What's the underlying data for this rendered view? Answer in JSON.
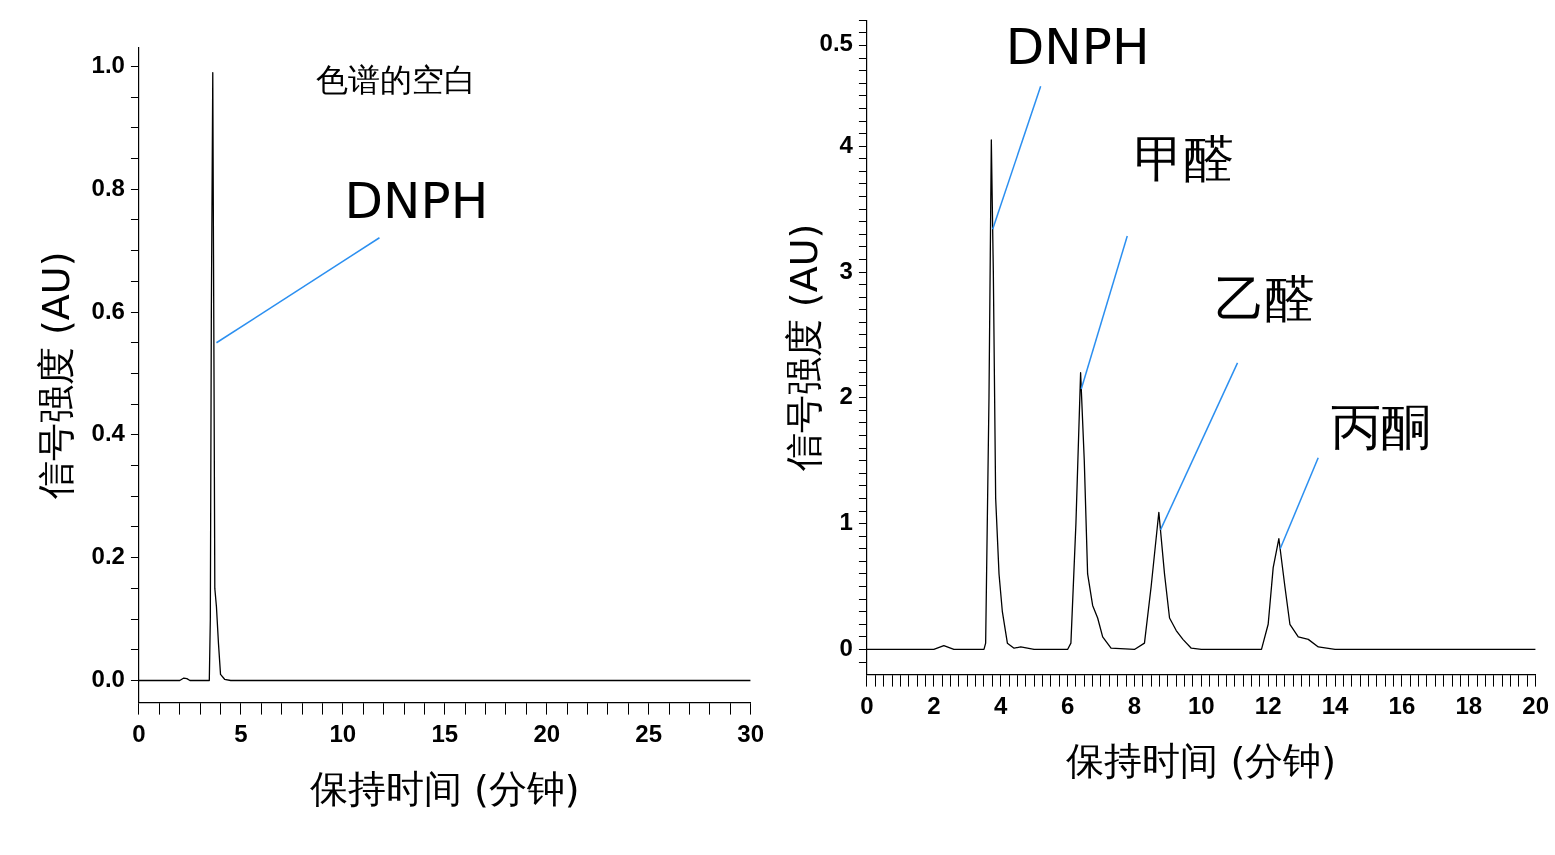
{
  "chart_data": [
    {
      "type": "line",
      "title": "色谱的空白",
      "xlabel": "保持时间 (分钟)",
      "ylabel": "信号强度 (AU)",
      "color": "#000000",
      "marker": "none",
      "line_style": "solid",
      "grid": false,
      "legend": false,
      "x": [
        0,
        1,
        2,
        2.2,
        2.35,
        2.5,
        3.0,
        3.45,
        3.5,
        3.55,
        3.62,
        3.68,
        3.72,
        3.8,
        3.9,
        4.0,
        4.2,
        4.5,
        10,
        20,
        30
      ],
      "values": [
        0,
        0,
        0,
        0.004,
        0.003,
        0,
        0,
        0,
        0.1,
        0.6,
        0.99,
        0.5,
        0.15,
        0.12,
        0.06,
        0.01,
        0.002,
        0,
        0,
        0,
        0
      ],
      "xlim": [
        0,
        30
      ],
      "ylim": [
        -0.036,
        1.03
      ],
      "xticks": [
        0,
        {
          "value": 1,
          "label": null
        },
        {
          "value": 2,
          "label": null
        },
        {
          "value": 3,
          "label": null
        },
        {
          "value": 4,
          "label": null
        },
        5,
        {
          "value": 6,
          "label": null
        },
        {
          "value": 7,
          "label": null
        },
        {
          "value": 8,
          "label": null
        },
        {
          "value": 9,
          "label": null
        },
        10,
        {
          "value": 11,
          "label": null
        },
        {
          "value": 12,
          "label": null
        },
        {
          "value": 13,
          "label": null
        },
        {
          "value": 14,
          "label": null
        },
        15,
        {
          "value": 16,
          "label": null
        },
        {
          "value": 17,
          "label": null
        },
        {
          "value": 18,
          "label": null
        },
        {
          "value": 19,
          "label": null
        },
        20,
        {
          "value": 21,
          "label": null
        },
        {
          "value": 22,
          "label": null
        },
        {
          "value": 23,
          "label": null
        },
        {
          "value": 24,
          "label": null
        },
        25,
        {
          "value": 26,
          "label": null
        },
        {
          "value": 27,
          "label": null
        },
        {
          "value": 28,
          "label": null
        },
        {
          "value": 29,
          "label": null
        },
        30
      ],
      "yticks": [
        {
          "value": 0,
          "label": "0.0"
        },
        {
          "value": 0.05,
          "label": null
        },
        {
          "value": 0.1,
          "label": null
        },
        {
          "value": 0.15,
          "label": null
        },
        0.2,
        {
          "value": 0.25,
          "label": null
        },
        {
          "value": 0.3,
          "label": null
        },
        {
          "value": 0.35,
          "label": null
        },
        0.4,
        {
          "value": 0.45,
          "label": null
        },
        {
          "value": 0.5,
          "label": null
        },
        {
          "value": 0.55,
          "label": null
        },
        0.6,
        {
          "value": 0.65,
          "label": null
        },
        {
          "value": 0.7,
          "label": null
        },
        {
          "value": 0.75,
          "label": null
        },
        0.8,
        {
          "value": 0.85,
          "label": null
        },
        {
          "value": 0.9,
          "label": null
        },
        {
          "value": 0.95,
          "label": null
        },
        {
          "value": 1,
          "label": "1.0"
        }
      ],
      "annotations": [
        {
          "text": "DNPH",
          "x": 3.8,
          "y": 0.55
        }
      ]
    },
    {
      "type": "line",
      "xlabel": "保持时间 (分钟)",
      "ylabel": "信号强度 (AU)",
      "color": "#000000",
      "marker": "none",
      "line_style": "solid",
      "grid": false,
      "legend": false,
      "x": [
        0,
        1,
        2,
        2.3,
        2.6,
        3.5,
        3.55,
        3.65,
        3.72,
        3.76,
        3.78,
        3.85,
        3.95,
        4.05,
        4.2,
        4.4,
        4.6,
        5,
        6,
        6.1,
        6.25,
        6.39,
        6.5,
        6.6,
        6.75,
        6.9,
        7.05,
        7.3,
        8,
        8.3,
        8.5,
        8.73,
        8.9,
        9.05,
        9.25,
        9.45,
        9.7,
        10,
        11.8,
        12.0,
        12.15,
        12.32,
        12.5,
        12.65,
        12.9,
        13.2,
        13.5,
        14,
        20
      ],
      "values": [
        0,
        0,
        0,
        0.03,
        0,
        0,
        0.05,
        2.0,
        4.05,
        3.34,
        3.0,
        1.2,
        0.6,
        0.3,
        0.05,
        0.01,
        0.02,
        0,
        0,
        0.05,
        1.0,
        2.2,
        1.5,
        0.6,
        0.35,
        0.25,
        0.1,
        0.01,
        0,
        0.05,
        0.5,
        1.09,
        0.6,
        0.25,
        0.15,
        0.08,
        0.01,
        0,
        0,
        0.2,
        0.65,
        0.88,
        0.5,
        0.2,
        0.1,
        0.08,
        0.02,
        0,
        0
      ],
      "xlim": [
        0,
        20
      ],
      "ylim": [
        -0.2,
        5
      ],
      "xticks": [
        0,
        {
          "value": 0.25,
          "label": null
        },
        {
          "value": 0.5,
          "label": null
        },
        {
          "value": 0.75,
          "label": null
        },
        {
          "value": 1,
          "label": null
        },
        {
          "value": 1.25,
          "label": null
        },
        {
          "value": 1.5,
          "label": null
        },
        {
          "value": 1.75,
          "label": null
        },
        2,
        {
          "value": 2.25,
          "label": null
        },
        {
          "value": 2.5,
          "label": null
        },
        {
          "value": 2.75,
          "label": null
        },
        {
          "value": 3,
          "label": null
        },
        {
          "value": 3.25,
          "label": null
        },
        {
          "value": 3.5,
          "label": null
        },
        {
          "value": 3.75,
          "label": null
        },
        4,
        {
          "value": 4.25,
          "label": null
        },
        {
          "value": 4.5,
          "label": null
        },
        {
          "value": 4.75,
          "label": null
        },
        {
          "value": 5,
          "label": null
        },
        {
          "value": 5.25,
          "label": null
        },
        {
          "value": 5.5,
          "label": null
        },
        {
          "value": 5.75,
          "label": null
        },
        6,
        {
          "value": 6.25,
          "label": null
        },
        {
          "value": 6.5,
          "label": null
        },
        {
          "value": 6.75,
          "label": null
        },
        {
          "value": 7,
          "label": null
        },
        {
          "value": 7.25,
          "label": null
        },
        {
          "value": 7.5,
          "label": null
        },
        {
          "value": 7.75,
          "label": null
        },
        8,
        {
          "value": 8.25,
          "label": null
        },
        {
          "value": 8.5,
          "label": null
        },
        {
          "value": 8.75,
          "label": null
        },
        {
          "value": 9,
          "label": null
        },
        {
          "value": 9.25,
          "label": null
        },
        {
          "value": 9.5,
          "label": null
        },
        {
          "value": 9.75,
          "label": null
        },
        10,
        {
          "value": 10.25,
          "label": null
        },
        {
          "value": 10.5,
          "label": null
        },
        {
          "value": 10.75,
          "label": null
        },
        {
          "value": 11,
          "label": null
        },
        {
          "value": 11.25,
          "label": null
        },
        {
          "value": 11.5,
          "label": null
        },
        {
          "value": 11.75,
          "label": null
        },
        12,
        {
          "value": 12.25,
          "label": null
        },
        {
          "value": 12.5,
          "label": null
        },
        {
          "value": 12.75,
          "label": null
        },
        {
          "value": 13,
          "label": null
        },
        {
          "value": 13.25,
          "label": null
        },
        {
          "value": 13.5,
          "label": null
        },
        {
          "value": 13.75,
          "label": null
        },
        14,
        {
          "value": 14.25,
          "label": null
        },
        {
          "value": 14.5,
          "label": null
        },
        {
          "value": 14.75,
          "label": null
        },
        {
          "value": 15,
          "label": null
        },
        {
          "value": 15.25,
          "label": null
        },
        {
          "value": 15.5,
          "label": null
        },
        {
          "value": 15.75,
          "label": null
        },
        16,
        {
          "value": 16.25,
          "label": null
        },
        {
          "value": 16.5,
          "label": null
        },
        {
          "value": 16.75,
          "label": null
        },
        {
          "value": 17,
          "label": null
        },
        {
          "value": 17.25,
          "label": null
        },
        {
          "value": 17.5,
          "label": null
        },
        {
          "value": 17.75,
          "label": null
        },
        18,
        {
          "value": 18.25,
          "label": null
        },
        {
          "value": 18.5,
          "label": null
        },
        {
          "value": 18.75,
          "label": null
        },
        {
          "value": 19,
          "label": null
        },
        {
          "value": 19.25,
          "label": null
        },
        {
          "value": 19.5,
          "label": null
        },
        {
          "value": 19.75,
          "label": null
        },
        20
      ],
      "yticks": [
        {
          "value": -0.1,
          "label": null
        },
        0,
        {
          "value": 0.1,
          "label": null
        },
        {
          "value": 0.2,
          "label": null
        },
        {
          "value": 0.3,
          "label": null
        },
        {
          "value": 0.4,
          "label": null
        },
        {
          "value": 0.5,
          "label": null
        },
        {
          "value": 0.6,
          "label": null
        },
        {
          "value": 0.7,
          "label": null
        },
        {
          "value": 0.8,
          "label": null
        },
        {
          "value": 0.9,
          "label": null
        },
        1,
        {
          "value": 1.1,
          "label": null
        },
        {
          "value": 1.2,
          "label": null
        },
        {
          "value": 1.3,
          "label": null
        },
        {
          "value": 1.4,
          "label": null
        },
        {
          "value": 1.5,
          "label": null
        },
        {
          "value": 1.6,
          "label": null
        },
        {
          "value": 1.7,
          "label": null
        },
        {
          "value": 1.8,
          "label": null
        },
        {
          "value": 1.9,
          "label": null
        },
        2,
        {
          "value": 2.1,
          "label": null
        },
        {
          "value": 2.2,
          "label": null
        },
        {
          "value": 2.3,
          "label": null
        },
        {
          "value": 2.4,
          "label": null
        },
        {
          "value": 2.5,
          "label": null
        },
        {
          "value": 2.6,
          "label": null
        },
        {
          "value": 2.7,
          "label": null
        },
        {
          "value": 2.8,
          "label": null
        },
        {
          "value": 2.9,
          "label": null
        },
        3,
        {
          "value": 3.1,
          "label": null
        },
        {
          "value": 3.2,
          "label": null
        },
        {
          "value": 3.3,
          "label": null
        },
        {
          "value": 3.4,
          "label": null
        },
        {
          "value": 3.5,
          "label": null
        },
        {
          "value": 3.6,
          "label": null
        },
        {
          "value": 3.7,
          "label": null
        },
        {
          "value": 3.8,
          "label": null
        },
        {
          "value": 3.9,
          "label": null
        },
        4,
        {
          "value": 4.1,
          "label": null
        },
        {
          "value": 4.2,
          "label": null
        },
        {
          "value": 4.3,
          "label": null
        },
        {
          "value": 4.4,
          "label": null
        },
        {
          "value": 4.5,
          "label": null
        },
        {
          "value": 4.6,
          "label": null
        },
        {
          "value": 4.7,
          "label": null
        },
        {
          "value": 4.8,
          "label": null
        },
        {
          "value": 4.9,
          "label": null
        },
        {
          "value": 5,
          "label": null
        }
      ],
      "annotations": [
        {
          "text": "DNPH",
          "x": 3.76,
          "y": 3.34
        },
        {
          "text": "甲醛",
          "x": 6.41,
          "y": 2.07
        },
        {
          "text": "乙醛",
          "x": 8.78,
          "y": 0.95
        },
        {
          "text": "丙酮",
          "x": 12.36,
          "y": 0.8
        },
        "0.5"
      ]
    }
  ]
}
